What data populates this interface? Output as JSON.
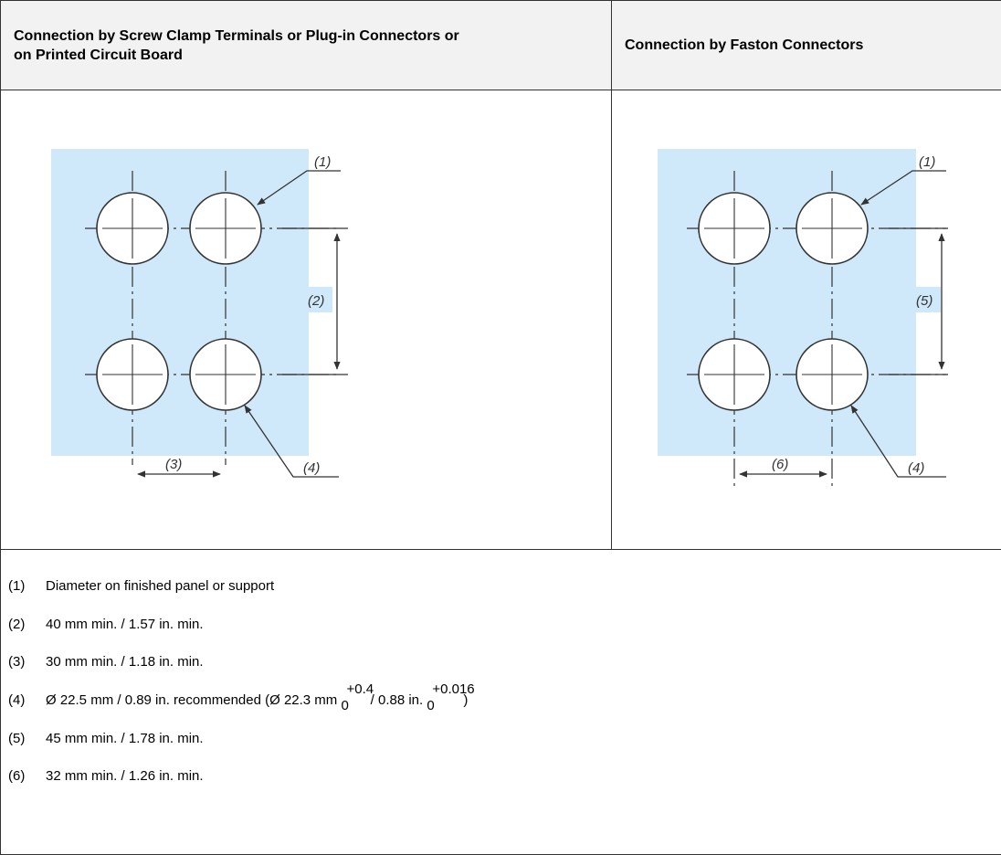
{
  "table": {
    "header_left": "Connection by Screw Clamp Terminals or Plug-in Connectors or on Printed Circuit Board",
    "header_left_line1": "Connection by Screw Clamp Terminals or Plug-in Connectors or",
    "header_left_line2": "on Printed Circuit Board",
    "header_right": "Connection by Faston Connectors"
  },
  "figures": {
    "left": {
      "label_hole": "(1)",
      "label_vertical": "(2)",
      "label_horizontal": "(3)",
      "label_diameter": "(4)"
    },
    "right": {
      "label_hole": "(1)",
      "label_vertical": "(5)",
      "label_horizontal": "(6)",
      "label_diameter": "(4)"
    },
    "panel_color": "#cfe9fb"
  },
  "legend": [
    {
      "num": "(1)",
      "text": "Diameter on finished panel or support"
    },
    {
      "num": "(2)",
      "text": "40 mm min. / 1.57 in. min."
    },
    {
      "num": "(3)",
      "text": "30 mm min. / 1.18 in. min."
    },
    {
      "num": "(4)",
      "text_a": "Ø 22.5 mm / 0.89 in. recommended (Ø 22.3 mm ",
      "tol1_upper": "+0.4",
      "tol1_lower": "0",
      "text_b": " / 0.88 in. ",
      "tol2_upper": "+0.016",
      "tol2_lower": "0",
      "text_c": ")"
    },
    {
      "num": "(5)",
      "text": "45 mm min. / 1.78 in. min."
    },
    {
      "num": "(6)",
      "text": "32 mm min. / 1.26 in. min."
    }
  ]
}
